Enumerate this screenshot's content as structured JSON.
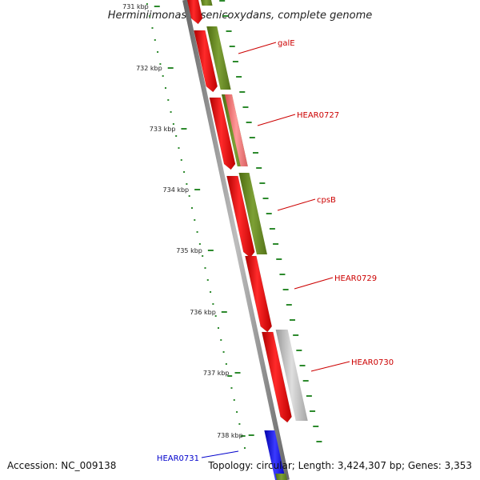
{
  "title": "Herminiimonas arsenicoxydans, complete genome",
  "accession": "Accession: NC_009138",
  "topology": "Topology: circular; Length: 3,424,307 bp; Genes: 3,353",
  "kbp_labels": [
    "731 kbp",
    "732 kbp",
    "733 kbp",
    "734 kbp",
    "735 kbp",
    "736 kbp",
    "737 kbp",
    "738 kbp"
  ],
  "gene_labels": [
    {
      "text": "galE",
      "color": "#cc0000"
    },
    {
      "text": "HEAR0727",
      "color": "#cc0000"
    },
    {
      "text": "cpsB",
      "color": "#cc0000"
    },
    {
      "text": "HEAR0729",
      "color": "#cc0000"
    },
    {
      "text": "HEAR0730",
      "color": "#cc0000"
    },
    {
      "text": "HEAR0731",
      "color": "#0000cc"
    }
  ],
  "colors": {
    "cds_forward": "#ff0000",
    "cds_forward_pale": "#ff7777",
    "gene_feature": "#6f8f22",
    "hypothetical": "#bbbbbb",
    "blue_gene": "#0000ee",
    "backbone": "#888888",
    "tick_green": "#2d8a2d"
  }
}
